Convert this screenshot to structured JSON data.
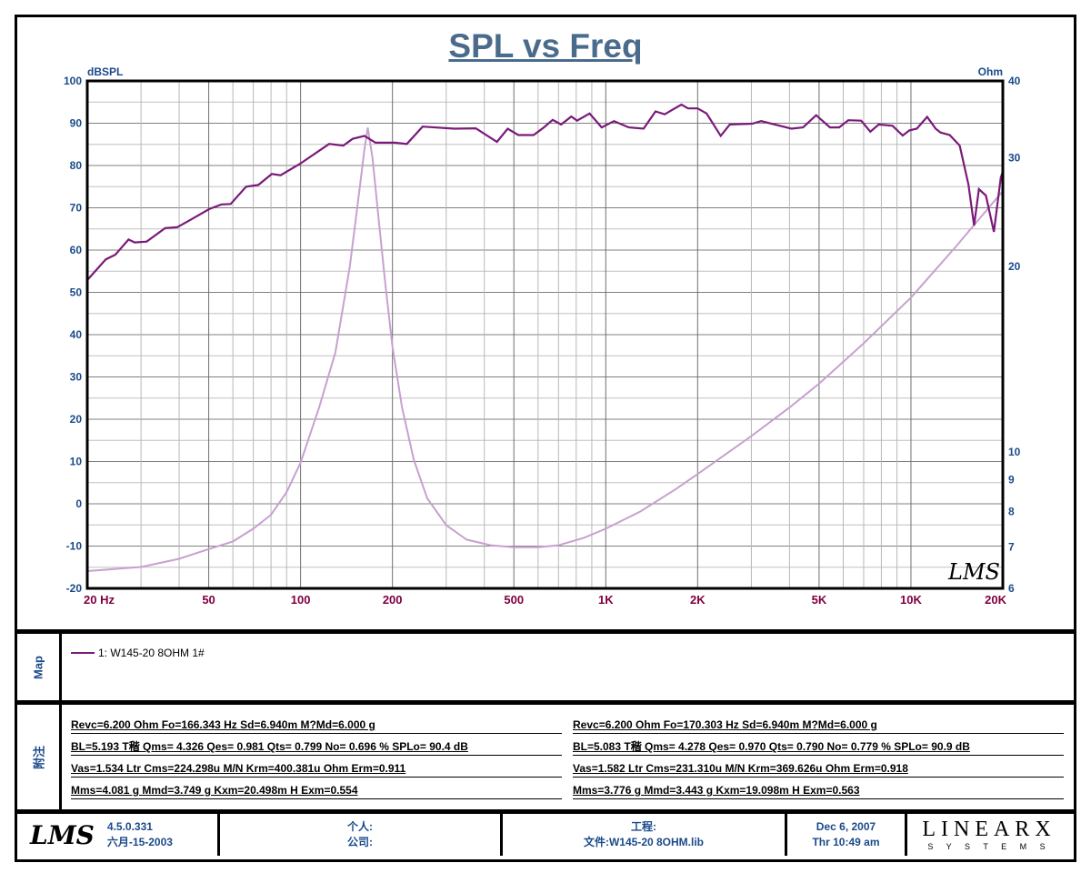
{
  "chart_data": {
    "type": "line",
    "title": "SPL vs Freq",
    "xlabel": "Hz",
    "ylabel": "dBSPL",
    "y2label": "Ohm",
    "xscale": "log",
    "xlim": [
      20,
      20000
    ],
    "ylim": [
      -20,
      100
    ],
    "y2lim": [
      6,
      40
    ],
    "y2scale": "log",
    "grid": true,
    "x_ticks": [
      {
        "v": 20,
        "label": "20  Hz"
      },
      {
        "v": 50,
        "label": "50"
      },
      {
        "v": 100,
        "label": "100"
      },
      {
        "v": 200,
        "label": "200"
      },
      {
        "v": 500,
        "label": "500"
      },
      {
        "v": 1000,
        "label": "1K"
      },
      {
        "v": 2000,
        "label": "2K"
      },
      {
        "v": 5000,
        "label": "5K"
      },
      {
        "v": 10000,
        "label": "10K"
      },
      {
        "v": 20000,
        "label": "20K"
      }
    ],
    "y_ticks": [
      "100",
      "90",
      "80",
      "70",
      "60",
      "50",
      "40",
      "30",
      "20",
      "10",
      "0",
      "-10",
      "-20"
    ],
    "y2_ticks": [
      {
        "v": 40,
        "label": "40"
      },
      {
        "v": 30,
        "label": "30"
      },
      {
        "v": 20,
        "label": "20"
      },
      {
        "v": 10,
        "label": "10"
      },
      {
        "v": 9,
        "label": "9"
      },
      {
        "v": 8,
        "label": "8"
      },
      {
        "v": 7,
        "label": "7"
      },
      {
        "v": 6,
        "label": "6"
      }
    ],
    "series": [
      {
        "name": "SPL",
        "axis": "left",
        "color": "#7a1a7a",
        "x": [
          20,
          23,
          24.7,
          27.3,
          28.6,
          31.3,
          36,
          39.4,
          43.2,
          50.2,
          55,
          59,
          66.3,
          72.7,
          80.5,
          86,
          99.6,
          124,
          138,
          148,
          162,
          176,
          204,
          223,
          251,
          319,
          375,
          440,
          477,
          517,
          580,
          627,
          670,
          714,
          771,
          805,
          885,
          970,
          1064,
          1190,
          1330,
          1455,
          1560,
          1656,
          1770,
          1860,
          2000,
          2140,
          2380,
          2550,
          3020,
          3230,
          4060,
          4430,
          4890,
          5430,
          5820,
          6230,
          6870,
          7360,
          7840,
          8700,
          9400,
          9880,
          10450,
          11300,
          12050,
          12500,
          13400,
          14450,
          15430,
          16100,
          16700,
          17600,
          18700,
          19700,
          20000
        ],
        "y": [
          52.9,
          57.8,
          58.9,
          62.5,
          61.8,
          62,
          65.2,
          65.4,
          67,
          69.7,
          70.8,
          70.9,
          75,
          75.4,
          78,
          77.7,
          80.4,
          85.1,
          84.7,
          86.3,
          87,
          85.4,
          85.4,
          85.1,
          89.2,
          88.7,
          88.8,
          85.6,
          88.7,
          87.2,
          87.2,
          89,
          90.8,
          89.7,
          91.6,
          90.6,
          92.3,
          89,
          90.5,
          89,
          88.7,
          92.8,
          92.1,
          93.2,
          94.4,
          93.5,
          93.5,
          92.3,
          87,
          89.7,
          89.9,
          90.5,
          88.7,
          89,
          91.9,
          89,
          89,
          90.7,
          90.6,
          88,
          89.7,
          89.4,
          87.1,
          88.3,
          88.7,
          91.5,
          88.7,
          87.8,
          87.2,
          84.7,
          75.5,
          65.8,
          74.4,
          72.9,
          64.3,
          77.2,
          78.5
        ]
      },
      {
        "name": "Impedance",
        "axis": "right",
        "color": "#c8a0d0",
        "x": [
          20,
          30,
          40,
          50,
          60,
          70,
          80,
          90,
          100,
          115,
          130,
          145,
          155,
          162,
          166,
          172,
          180,
          190,
          200,
          215,
          235,
          260,
          300,
          350,
          420,
          500,
          600,
          700,
          850,
          1000,
          1300,
          1700,
          2000,
          3000,
          4000,
          5000,
          7000,
          10000,
          14000,
          20000
        ],
        "y": [
          6.4,
          6.5,
          6.7,
          6.95,
          7.15,
          7.5,
          7.9,
          8.6,
          9.6,
          11.8,
          14.5,
          20,
          26,
          31,
          33.6,
          30,
          24,
          18.5,
          14.8,
          11.8,
          9.7,
          8.4,
          7.6,
          7.2,
          7.05,
          7.0,
          7.0,
          7.05,
          7.25,
          7.5,
          8.0,
          8.7,
          9.2,
          10.6,
          11.8,
          12.9,
          15,
          17.8,
          21.5,
          26.5
        ]
      }
    ],
    "watermark": "LMS"
  },
  "map": {
    "label": "Map",
    "legend": "1: W145-20  8OHM  1#"
  },
  "notes": {
    "label": "附注",
    "left": [
      "Revc=6.200 Ohm  Fo=166.343 Hz  Sd=6.940m M?Md=6.000 g",
      "BL=5.193 T稭  Qms= 4.326  Qes= 0.981  Qts= 0.799  No= 0.696 %  SPLo= 90.4 dB",
      "Vas=1.534 Ltr  Cms=224.298u M/N  Krm=400.381u Ohm  Erm=0.911",
      "Mms=4.081 g  Mmd=3.749 g  Kxm=20.498m H  Exm=0.554"
    ],
    "right": [
      "Revc=6.200 Ohm  Fo=170.303 Hz  Sd=6.940m M?Md=6.000 g",
      "BL=5.083 T稭  Qms= 4.278  Qes= 0.970  Qts= 0.790  No= 0.779 %  SPLo= 90.9 dB",
      "Vas=1.582 Ltr  Cms=231.310u M/N  Krm=369.626u Ohm  Erm=0.918",
      "Mms=3.776 g  Mmd=3.443 g  Kxm=19.098m H  Exm=0.563"
    ]
  },
  "footer": {
    "logo": "LMS",
    "version": "4.5.0.331",
    "build_date": "六月-15-2003",
    "personal_label": "个人:",
    "company_label": "公司:",
    "project_label": "工程:",
    "file_label": "文件:W145-20   8OHM.lib",
    "date": "Dec  6, 2007",
    "time": "Thr 10:49 am",
    "brand": "LINEARX",
    "brand_sub": "S Y S T E M S"
  }
}
